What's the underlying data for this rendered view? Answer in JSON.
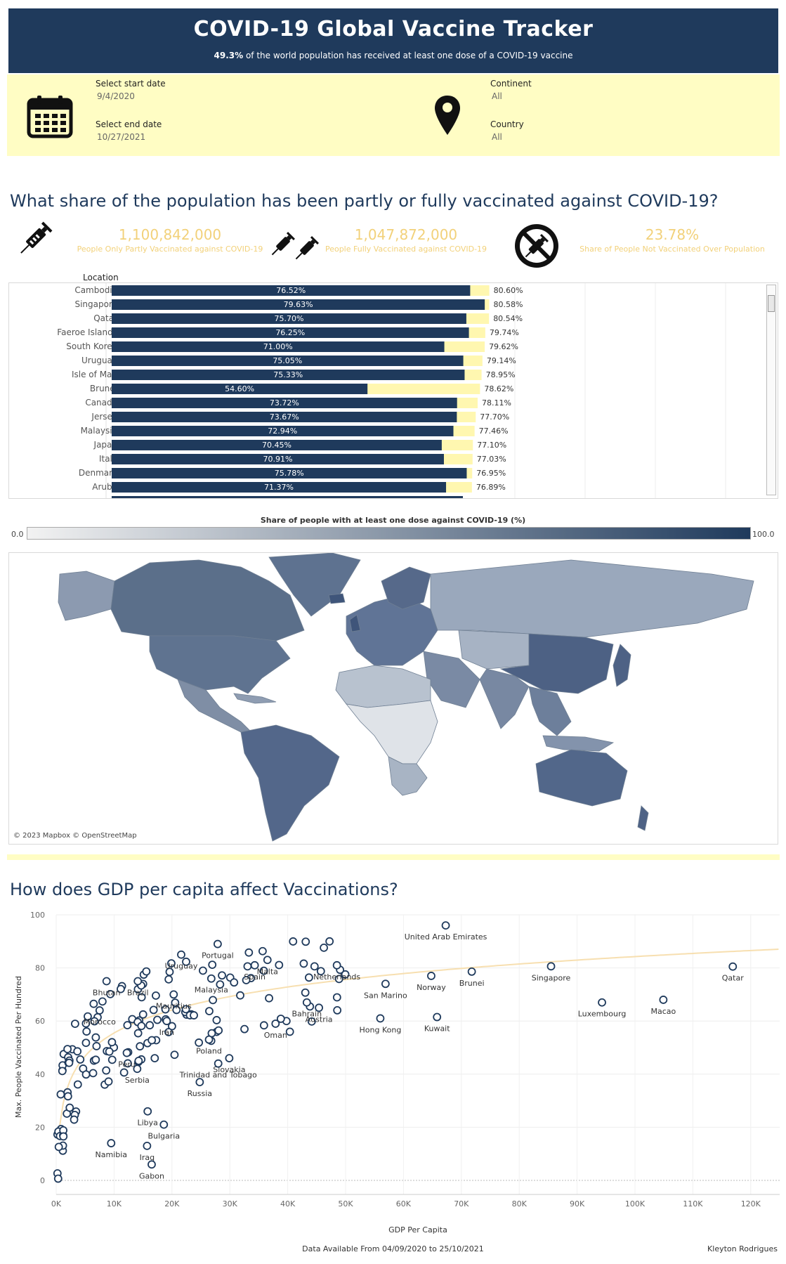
{
  "header": {
    "title": "COVID-19 Global Vaccine Tracker",
    "subtitle_value": "49.3%",
    "subtitle_text": " of the world population has received at least one dose of a COVID-19 vaccine"
  },
  "filters": {
    "start_label": "Select start date",
    "start_value": "9/4/2020",
    "end_label": "Select end date",
    "end_value": "10/27/2021",
    "continent_label": "Continent",
    "continent_value": "All",
    "country_label": "Country",
    "country_value": "All"
  },
  "section1": {
    "title": "What share of the population has been partly or fully vaccinated against COVID-19?",
    "kpi1_value": "1,100,842,000",
    "kpi1_label": "People Only Partly Vaccinated against COVID-19",
    "kpi2_value": "1,047,872,000",
    "kpi2_label": "People Fully Vaccinated against COVID-19",
    "kpi3_value": "23.78%",
    "kpi3_label": "Share of People Not Vaccinated Over Population",
    "table_header": "Location"
  },
  "colors": {
    "navy": "#1f3a5c",
    "pale_yellow": "#fffdc4",
    "bar_yellow": "#fff7b0",
    "kpi_gold": "#f2d17a",
    "trend": "#f7dfb0"
  },
  "chart_data": [
    {
      "type": "bar",
      "categories": [
        "Cambodia",
        "Singapore",
        "Qatar",
        "Faeroe Islands",
        "South Korea",
        "Uruguay",
        "Isle of Man",
        "Brunei",
        "Canada",
        "Jersey",
        "Malaysia",
        "Japan",
        "Italy",
        "Denmark",
        "Aruba"
      ],
      "series": [
        {
          "values": [
            76.52,
            79.63,
            75.7,
            76.25,
            71.0,
            75.05,
            75.33,
            54.6,
            73.72,
            73.67,
            72.94,
            70.45,
            70.91,
            75.78,
            71.37
          ]
        },
        {
          "values": [
            80.6,
            80.58,
            80.54,
            79.74,
            79.62,
            79.14,
            78.95,
            78.62,
            78.11,
            77.7,
            77.46,
            77.1,
            77.03,
            76.95,
            76.89
          ]
        }
      ],
      "xlim": [
        0,
        100
      ]
    },
    {
      "type": "heatmap",
      "title": "Share of people with at least one dose against COVID-19 (%)",
      "legend_min": "0.0",
      "legend_max": "100.0",
      "credit": "© 2023 Mapbox © OpenStreetMap"
    },
    {
      "type": "scatter",
      "title": "How does GDP per capita affect Vaccinations?",
      "xlabel": "GDP Per Capita",
      "ylabel": "Max. People Vaccinated Per Hundred",
      "xlim": [
        0,
        125000
      ],
      "ylim": [
        0,
        100
      ],
      "x_ticks": [
        "0K",
        "10K",
        "20K",
        "30K",
        "40K",
        "50K",
        "60K",
        "70K",
        "80K",
        "90K",
        "100K",
        "110K",
        "120K"
      ],
      "y_ticks": [
        "0",
        "20",
        "40",
        "60",
        "80",
        "100"
      ],
      "labeled_points": [
        {
          "label": "United Arab Emirates",
          "x": 67300,
          "y": 96
        },
        {
          "label": "Portugal",
          "x": 27900,
          "y": 89
        },
        {
          "label": "Uruguay",
          "x": 21600,
          "y": 85
        },
        {
          "label": "Malta",
          "x": 36500,
          "y": 83
        },
        {
          "label": "Spain",
          "x": 34300,
          "y": 81
        },
        {
          "label": "Netherlands",
          "x": 48500,
          "y": 81
        },
        {
          "label": "Brazil",
          "x": 14100,
          "y": 75
        },
        {
          "label": "Bhutan",
          "x": 8700,
          "y": 75
        },
        {
          "label": "Malaysia",
          "x": 26800,
          "y": 76
        },
        {
          "label": "Norway",
          "x": 64800,
          "y": 77
        },
        {
          "label": "Brunei",
          "x": 71800,
          "y": 78.6
        },
        {
          "label": "Singapore",
          "x": 85500,
          "y": 80.6
        },
        {
          "label": "Qatar",
          "x": 116900,
          "y": 80.5
        },
        {
          "label": "Mauritius",
          "x": 20300,
          "y": 70
        },
        {
          "label": "Bahrain",
          "x": 43300,
          "y": 67
        },
        {
          "label": "San Marino",
          "x": 56900,
          "y": 74
        },
        {
          "label": "Luxembourg",
          "x": 94300,
          "y": 67
        },
        {
          "label": "Macao",
          "x": 104900,
          "y": 68
        },
        {
          "label": "Morocco",
          "x": 7500,
          "y": 64
        },
        {
          "label": "Iran",
          "x": 19100,
          "y": 60
        },
        {
          "label": "Austria",
          "x": 45400,
          "y": 65
        },
        {
          "label": "Hong Kong",
          "x": 56000,
          "y": 61
        },
        {
          "label": "Kuwait",
          "x": 65800,
          "y": 61.5
        },
        {
          "label": "Oman",
          "x": 37900,
          "y": 59
        },
        {
          "label": "Poland",
          "x": 26400,
          "y": 53
        },
        {
          "label": "Peru",
          "x": 12200,
          "y": 48
        },
        {
          "label": "Serbia",
          "x": 14000,
          "y": 42
        },
        {
          "label": "Slovakia",
          "x": 29900,
          "y": 46
        },
        {
          "label": "Trinidad and Tobago",
          "x": 28000,
          "y": 44
        },
        {
          "label": "Russia",
          "x": 24800,
          "y": 37
        },
        {
          "label": "Libya",
          "x": 15800,
          "y": 26
        },
        {
          "label": "Bulgaria",
          "x": 18600,
          "y": 21
        },
        {
          "label": "Namibia",
          "x": 9500,
          "y": 14
        },
        {
          "label": "Iraq",
          "x": 15700,
          "y": 13
        },
        {
          "label": "Gabon",
          "x": 16500,
          "y": 6
        }
      ]
    }
  ],
  "footer": {
    "availability": "Data Available From 04/09/2020 to 25/10/2021",
    "author": "Kleyton Rodrigues"
  }
}
